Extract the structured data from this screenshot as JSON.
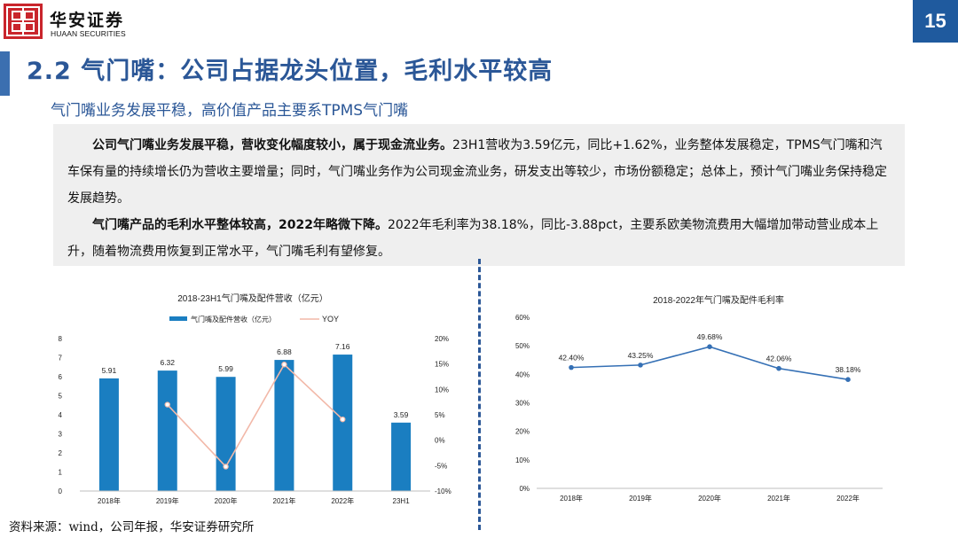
{
  "header": {
    "logo_cn": "华安证券",
    "logo_en": "HUAAN SECURITIES",
    "page_number": "15"
  },
  "title": "2.2 气门嘴：公司占据龙头位置，毛利水平较高",
  "subtitle": "气门嘴业务发展平稳，高价值产品主要系TPMS气门嘴",
  "paragraph1": {
    "bold": "公司气门嘴业务发展平稳，营收变化幅度较小，属于现金流业务。",
    "normal": "23H1营收为3.59亿元，同比+1.62%，业务整体发展稳定，TPMS气门嘴和汽车保有量的持续增长仍为营收主要增量；同时，气门嘴业务作为公司现金流业务，研发支出等较少，市场份额稳定；总体上，预计气门嘴业务保持稳定发展趋势。"
  },
  "paragraph2": {
    "bold": "气门嘴产品的毛利水平整体较高，2022年略微下降。",
    "normal": "2022年毛利率为38.18%，同比-3.88pct，主要系欧美物流费用大幅增加带动营业成本上升，随着物流费用恢复到正常水平，气门嘴毛利有望修复。"
  },
  "source": "资料来源：wind，公司年报，华安证券研究所",
  "colors": {
    "brand_blue": "#1f5a9e",
    "bar_blue": "#1a7ec1",
    "yoy_line": "#f2b8a8",
    "margin_line": "#3570b5",
    "logo_red": "#c9252c"
  },
  "chart_data": [
    {
      "type": "bar",
      "title": "2018-23H1气门嘴及配件营收（亿元）",
      "categories": [
        "2018年",
        "2019年",
        "2020年",
        "2021年",
        "2022年",
        "23H1"
      ],
      "series": [
        {
          "name": "气门嘴及配件营收（亿元）",
          "type": "bar",
          "axis": "left",
          "values": [
            5.91,
            6.32,
            5.99,
            6.88,
            7.16,
            3.59
          ]
        },
        {
          "name": "YOY",
          "type": "line",
          "axis": "right",
          "values": [
            null,
            7.0,
            -5.2,
            14.9,
            4.1,
            null
          ]
        }
      ],
      "left_axis": {
        "min": 0,
        "max": 8,
        "ticks": [
          "0",
          "1",
          "2",
          "3",
          "4",
          "5",
          "6",
          "7",
          "8"
        ]
      },
      "right_axis": {
        "min": -10,
        "max": 20,
        "ticks": [
          "-10%",
          "-5%",
          "0%",
          "5%",
          "10%",
          "15%",
          "20%"
        ]
      },
      "legend": "top-center"
    },
    {
      "type": "line",
      "title": "2018-2022年气门嘴及配件毛利率",
      "categories": [
        "2018年",
        "2019年",
        "2020年",
        "2021年",
        "2022年"
      ],
      "values": [
        42.4,
        43.25,
        49.68,
        42.06,
        38.18
      ],
      "labels": [
        "42.40%",
        "43.25%",
        "49.68%",
        "42.06%",
        "38.18%"
      ],
      "y_axis": {
        "min": 0,
        "max": 60,
        "ticks": [
          "0%",
          "10%",
          "20%",
          "30%",
          "40%",
          "50%",
          "60%"
        ]
      }
    }
  ]
}
